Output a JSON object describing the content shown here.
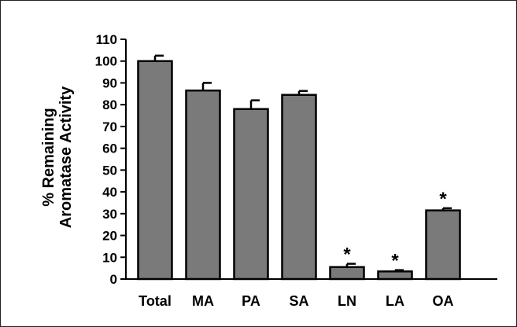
{
  "chart_data": {
    "type": "bar",
    "title": "",
    "xlabel": "",
    "ylabel_lines": [
      "% Remaining",
      "Aromatase Activity"
    ],
    "ylim": [
      0,
      110
    ],
    "yticks": [
      0,
      10,
      20,
      30,
      40,
      50,
      60,
      70,
      80,
      90,
      100,
      110
    ],
    "categories": [
      "Total",
      "MA",
      "PA",
      "SA",
      "LN",
      "LA",
      "OA"
    ],
    "values": [
      100,
      86.5,
      78,
      84.5,
      5.5,
      3.5,
      31.5
    ],
    "errors": [
      2.5,
      3.5,
      4,
      1.8,
      1.5,
      0.6,
      1
    ],
    "significance": [
      "",
      "",
      "",
      "",
      "*",
      "*",
      "*"
    ],
    "grid": false,
    "legend": "none",
    "colors": {
      "bar_fill": "#7a7a7a",
      "bar_stroke": "#000000",
      "axis": "#000000"
    }
  }
}
